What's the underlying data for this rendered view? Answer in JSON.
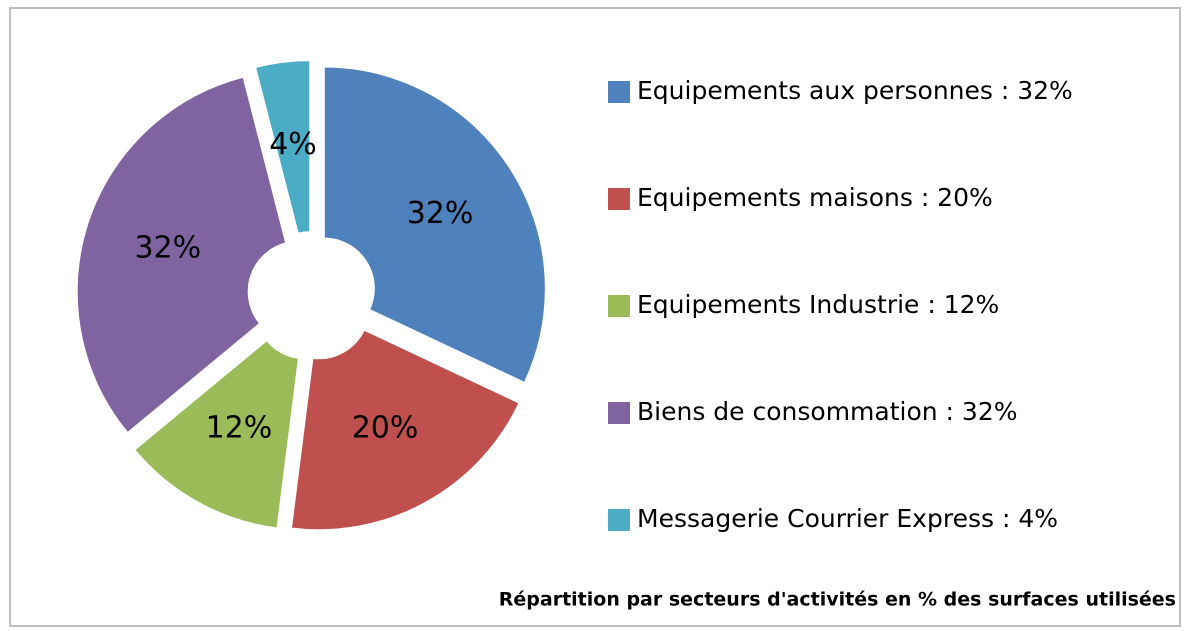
{
  "chart_data": {
    "type": "doughnut",
    "title": "Répartition par secteurs d'activités en % des surfaces utilisées",
    "categories": [
      "Equipements aux personnes : 32%",
      "Equipements maisons : 20%",
      "Equipements Industrie : 12%",
      "Biens de consommation : 32%",
      "Messagerie Courrier Express : 4%"
    ],
    "values": [
      32,
      20,
      12,
      32,
      4
    ],
    "value_labels": [
      "32%",
      "20%",
      "12%",
      "32%",
      "4%"
    ],
    "colors": [
      "#4f81bd",
      "#c0504d",
      "#9bbb59",
      "#8064a2",
      "#4bacc6"
    ],
    "legend": "right"
  }
}
